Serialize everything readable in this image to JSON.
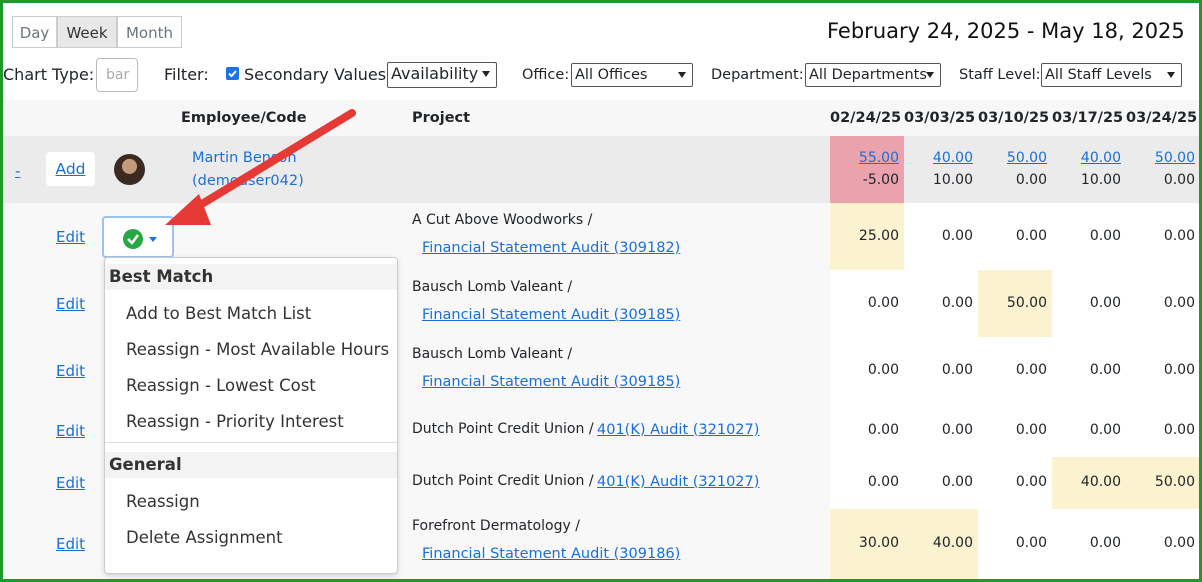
{
  "view_tabs": [
    "Day",
    "Week",
    "Month"
  ],
  "date_range": "February 24, 2025 - May 18, 2025",
  "filters": {
    "chart_type_label": "Chart Type:",
    "chart_type_placeholder": "bar",
    "filter_label": "Filter:",
    "secondary_values": "Secondary Values",
    "secondary_select": "Availability",
    "office_label": "Office:",
    "office_select": "All Offices",
    "department_label": "Department:",
    "department_select": "All Departments",
    "staff_level_label": "Staff Level:",
    "staff_level_select": "All Staff Levels"
  },
  "table": {
    "headers": {
      "employee": "Employee/Code",
      "project": "Project",
      "weeks": [
        "02/24/25",
        "03/03/25",
        "03/10/25",
        "03/17/25",
        "03/24/25"
      ]
    },
    "employee_row": {
      "toggle": "-",
      "add": "Add",
      "name": "Martin Benson",
      "code": "(demouser042)",
      "primary": [
        "55.00",
        "40.00",
        "50.00",
        "40.00",
        "50.00"
      ],
      "secondary": [
        "-5.00",
        "10.00",
        "0.00",
        "10.00",
        "0.00"
      ]
    },
    "rows": [
      {
        "edit": "Edit",
        "client": "A Cut Above Woodworks /",
        "project": "Financial Statement Audit (309182)",
        "hours": [
          "25.00",
          "0.00",
          "0.00",
          "0.00",
          "0.00"
        ]
      },
      {
        "edit": "Edit",
        "client": "Bausch Lomb Valeant /",
        "project": "Financial Statement Audit (309185)",
        "hours": [
          "0.00",
          "0.00",
          "50.00",
          "0.00",
          "0.00"
        ]
      },
      {
        "edit": "Edit",
        "client": "Bausch Lomb Valeant /",
        "project": "Financial Statement Audit (309185)",
        "hours": [
          "0.00",
          "0.00",
          "0.00",
          "0.00",
          "0.00"
        ]
      },
      {
        "edit": "Edit",
        "client": "Dutch Point Credit Union /",
        "project": "401(K) Audit (321027)",
        "hours": [
          "0.00",
          "0.00",
          "0.00",
          "0.00",
          "0.00"
        ]
      },
      {
        "edit": "Edit",
        "client": "Dutch Point Credit Union /",
        "project": "401(K) Audit (321027)",
        "hours": [
          "0.00",
          "0.00",
          "0.00",
          "40.00",
          "50.00"
        ]
      },
      {
        "edit": "Edit",
        "client": "Forefront Dermatology /",
        "project": "Financial Statement Audit (309186)",
        "hours": [
          "30.00",
          "40.00",
          "0.00",
          "0.00",
          "0.00"
        ]
      }
    ]
  },
  "dropdown": {
    "sections": [
      {
        "title": "Best Match",
        "items": [
          "Add to Best Match List",
          "Reassign - Most Available Hours",
          "Reassign - Lowest Cost",
          "Reassign - Priority Interest"
        ]
      },
      {
        "title": "General",
        "items": [
          "Reassign",
          "Delete Assignment"
        ]
      }
    ]
  }
}
